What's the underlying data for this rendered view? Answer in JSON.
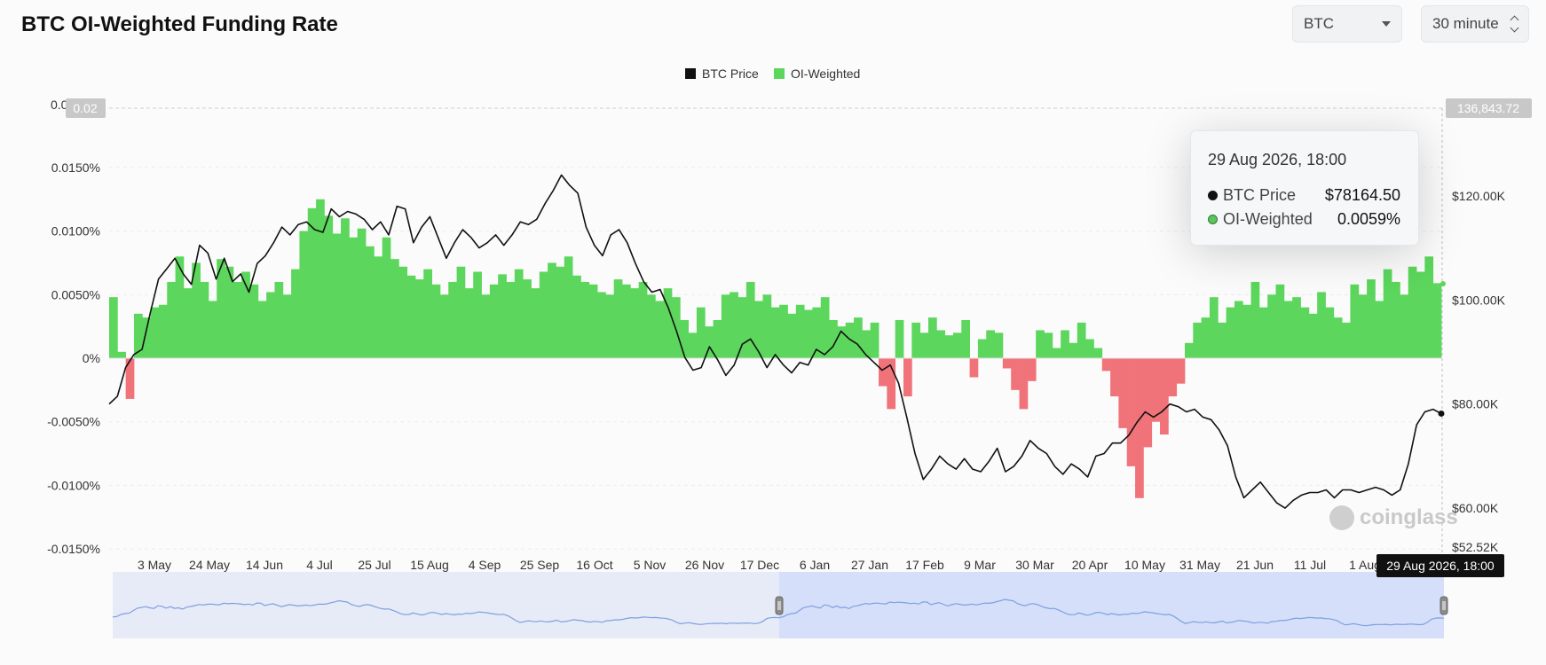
{
  "header": {
    "title": "BTC OI-Weighted Funding Rate",
    "symbol_select": {
      "value": "BTC"
    },
    "interval_select": {
      "value": "30 minute"
    }
  },
  "legend": [
    {
      "name": "BTC Price",
      "color": "#111111"
    },
    {
      "name": "OI-Weighted",
      "color": "#4caf50"
    }
  ],
  "tooltip": {
    "time": "29 Aug 2026, 18:00",
    "rows": [
      {
        "label": "BTC Price",
        "value": "$78164.50"
      },
      {
        "label": "OI-Weighted",
        "value": "0.0059%"
      }
    ]
  },
  "crosshair_label": "29 Aug 2026, 18:00",
  "watermark": "coinglass",
  "colors": {
    "positive": "#5cd65c",
    "negative": "#f0737a",
    "price_line": "#111111",
    "navigator_line": "#7f9fe0",
    "navigator_fill": "#e6ebf7",
    "navigator_selected": "#d5dffa"
  },
  "chart_data": {
    "type": "bar",
    "title": "BTC OI-Weighted Funding Rate",
    "left_axis": {
      "unit": "%",
      "ticks": [
        "0.0150%",
        "0.0100%",
        "0.0050%",
        "0%",
        "-0.0050%",
        "-0.0100%",
        "-0.0150%"
      ],
      "tick_values": [
        0.015,
        0.01,
        0.005,
        0,
        -0.005,
        -0.01,
        -0.015
      ],
      "max_label": "0.02",
      "top_truncated_tick": "0.0",
      "range": [
        -0.015,
        0.0185
      ]
    },
    "right_axis": {
      "ticks": [
        "$120.00K",
        "$100.00K",
        "$80.00K",
        "$60.00K",
        "$52.52K"
      ],
      "tick_values": [
        120000,
        100000,
        80000,
        60000,
        52520
      ],
      "max_label": "136,843.72",
      "range": [
        52520,
        136843.72
      ]
    },
    "x_axis": {
      "ticks": [
        "3 May",
        "24 May",
        "14 Jun",
        "4 Jul",
        "25 Jul",
        "15 Aug",
        "4 Sep",
        "25 Sep",
        "16 Oct",
        "5 Nov",
        "26 Nov",
        "17 Dec",
        "6 Jan",
        "27 Jan",
        "17 Feb",
        "9 Mar",
        "30 Mar",
        "20 Apr",
        "10 May",
        "31 May",
        "21 Jun",
        "11 Jul",
        "1 Aug"
      ]
    },
    "series": [
      {
        "name": "BTC Price",
        "type": "line",
        "points": [
          [
            0,
            80000
          ],
          [
            1,
            81500
          ],
          [
            2,
            87000
          ],
          [
            3,
            89500
          ],
          [
            4,
            90500
          ],
          [
            5,
            97500
          ],
          [
            6,
            104000
          ],
          [
            7,
            106000
          ],
          [
            8,
            108000
          ],
          [
            9,
            105000
          ],
          [
            10,
            103000
          ],
          [
            11,
            110500
          ],
          [
            12,
            109000
          ],
          [
            13,
            104000
          ],
          [
            14,
            108000
          ],
          [
            15,
            103500
          ],
          [
            16,
            105000
          ],
          [
            17,
            101500
          ],
          [
            18,
            107000
          ],
          [
            19,
            108500
          ],
          [
            20,
            111000
          ],
          [
            21,
            114000
          ],
          [
            22,
            112500
          ],
          [
            23,
            114500
          ],
          [
            24,
            115000
          ],
          [
            25,
            113500
          ],
          [
            26,
            113000
          ],
          [
            27,
            117500
          ],
          [
            28,
            116000
          ],
          [
            29,
            117000
          ],
          [
            30,
            116500
          ],
          [
            31,
            115500
          ],
          [
            32,
            113500
          ],
          [
            33,
            115000
          ],
          [
            34,
            112500
          ],
          [
            35,
            118000
          ],
          [
            36,
            117500
          ],
          [
            37,
            111000
          ],
          [
            38,
            114000
          ],
          [
            39,
            116000
          ],
          [
            40,
            112000
          ],
          [
            41,
            108000
          ],
          [
            42,
            111000
          ],
          [
            43,
            113500
          ],
          [
            44,
            112000
          ],
          [
            45,
            110000
          ],
          [
            46,
            111000
          ],
          [
            47,
            112500
          ],
          [
            48,
            110500
          ],
          [
            49,
            112500
          ],
          [
            50,
            115000
          ],
          [
            51,
            114500
          ],
          [
            52,
            115500
          ],
          [
            53,
            118500
          ],
          [
            54,
            121000
          ],
          [
            55,
            124000
          ],
          [
            56,
            122000
          ],
          [
            57,
            120500
          ],
          [
            58,
            114000
          ],
          [
            59,
            110500
          ],
          [
            60,
            108500
          ],
          [
            61,
            112500
          ],
          [
            62,
            113500
          ],
          [
            63,
            111000
          ],
          [
            64,
            107000
          ],
          [
            65,
            103500
          ],
          [
            66,
            101500
          ],
          [
            67,
            102000
          ],
          [
            68,
            98500
          ],
          [
            69,
            94000
          ],
          [
            70,
            89000
          ],
          [
            71,
            86500
          ],
          [
            72,
            87000
          ],
          [
            73,
            91000
          ],
          [
            74,
            88500
          ],
          [
            75,
            85500
          ],
          [
            76,
            87500
          ],
          [
            77,
            91500
          ],
          [
            78,
            92500
          ],
          [
            79,
            90000
          ],
          [
            80,
            87000
          ],
          [
            81,
            89500
          ],
          [
            82,
            87500
          ],
          [
            83,
            86000
          ],
          [
            84,
            88000
          ],
          [
            85,
            87500
          ],
          [
            86,
            90500
          ],
          [
            87,
            89500
          ],
          [
            88,
            91000
          ],
          [
            89,
            94000
          ],
          [
            90,
            92500
          ],
          [
            91,
            91500
          ],
          [
            92,
            89500
          ],
          [
            93,
            88000
          ],
          [
            94,
            86500
          ],
          [
            95,
            87500
          ],
          [
            96,
            84000
          ],
          [
            97,
            77500
          ],
          [
            98,
            70500
          ],
          [
            99,
            65500
          ],
          [
            100,
            67500
          ],
          [
            101,
            70000
          ],
          [
            102,
            68500
          ],
          [
            103,
            67500
          ],
          [
            104,
            69500
          ],
          [
            105,
            67500
          ],
          [
            106,
            67000
          ],
          [
            107,
            69000
          ],
          [
            108,
            71500
          ],
          [
            109,
            67000
          ],
          [
            110,
            68000
          ],
          [
            111,
            70000
          ],
          [
            112,
            73000
          ],
          [
            113,
            71500
          ],
          [
            114,
            70500
          ],
          [
            115,
            68000
          ],
          [
            116,
            66500
          ],
          [
            117,
            68500
          ],
          [
            118,
            67500
          ],
          [
            119,
            66000
          ],
          [
            120,
            70000
          ],
          [
            121,
            70500
          ],
          [
            122,
            72500
          ],
          [
            123,
            72500
          ],
          [
            124,
            74000
          ],
          [
            125,
            76500
          ],
          [
            126,
            78500
          ],
          [
            127,
            77500
          ],
          [
            128,
            78500
          ],
          [
            129,
            80000
          ],
          [
            130,
            79500
          ],
          [
            131,
            78500
          ],
          [
            132,
            79000
          ],
          [
            133,
            77500
          ],
          [
            134,
            77000
          ],
          [
            135,
            75000
          ],
          [
            136,
            72000
          ],
          [
            137,
            66000
          ],
          [
            138,
            62000
          ],
          [
            139,
            63500
          ],
          [
            140,
            65000
          ],
          [
            141,
            63000
          ],
          [
            142,
            61000
          ],
          [
            143,
            60000
          ],
          [
            144,
            61500
          ],
          [
            145,
            62500
          ],
          [
            146,
            63000
          ],
          [
            147,
            63000
          ],
          [
            148,
            63500
          ],
          [
            149,
            62000
          ],
          [
            150,
            63500
          ],
          [
            151,
            63500
          ],
          [
            152,
            63000
          ],
          [
            153,
            63500
          ],
          [
            154,
            64000
          ],
          [
            155,
            63500
          ],
          [
            156,
            62500
          ],
          [
            157,
            63500
          ],
          [
            158,
            68500
          ],
          [
            159,
            76000
          ],
          [
            160,
            78500
          ],
          [
            161,
            79000
          ],
          [
            162,
            78164.5
          ]
        ]
      },
      {
        "name": "OI-Weighted",
        "type": "bar",
        "values": [
          0.0048,
          0.0005,
          -0.0032,
          0.0035,
          0.0032,
          0.004,
          0.0042,
          0.006,
          0.008,
          0.0055,
          0.0075,
          0.006,
          0.0045,
          0.0078,
          0.0072,
          0.006,
          0.0068,
          0.0058,
          0.0045,
          0.0052,
          0.006,
          0.005,
          0.007,
          0.01,
          0.0118,
          0.0125,
          0.0112,
          0.0098,
          0.011,
          0.0095,
          0.0102,
          0.0088,
          0.008,
          0.0095,
          0.0078,
          0.0072,
          0.0065,
          0.0062,
          0.007,
          0.0058,
          0.005,
          0.006,
          0.0072,
          0.0055,
          0.0068,
          0.005,
          0.0058,
          0.0066,
          0.006,
          0.007,
          0.0062,
          0.0055,
          0.0068,
          0.0075,
          0.0072,
          0.008,
          0.0065,
          0.006,
          0.0058,
          0.0052,
          0.005,
          0.0062,
          0.0058,
          0.0055,
          0.006,
          0.005,
          0.0045,
          0.0055,
          0.0048,
          0.003,
          0.002,
          0.004,
          0.0025,
          0.003,
          0.005,
          0.0052,
          0.0048,
          0.006,
          0.0045,
          0.005,
          0.004,
          0.0042,
          0.0035,
          0.0042,
          0.0038,
          0.004,
          0.0048,
          0.003,
          0.0025,
          0.0028,
          0.0032,
          0.0022,
          0.0028,
          -0.0022,
          -0.004,
          0.003,
          -0.003,
          0.0028,
          0.002,
          0.0032,
          0.0022,
          0.0018,
          0.002,
          0.003,
          -0.0015,
          0.0015,
          0.0022,
          0.002,
          -0.0008,
          -0.0025,
          -0.004,
          -0.0018,
          0.0022,
          0.002,
          0.0008,
          0.0022,
          0.0012,
          0.0028,
          0.0015,
          0.0008,
          -0.001,
          -0.003,
          -0.0055,
          -0.0085,
          -0.011,
          -0.007,
          -0.005,
          -0.006,
          -0.003,
          -0.002,
          0.0012,
          0.0028,
          0.0032,
          0.0048,
          0.0028,
          0.004,
          0.0045,
          0.0042,
          0.006,
          0.004,
          0.005,
          0.0058,
          0.0045,
          0.0048,
          0.004,
          0.0035,
          0.0052,
          0.004,
          0.0032,
          0.0028,
          0.0058,
          0.005,
          0.0062,
          0.0045,
          0.007,
          0.006,
          0.005,
          0.0072,
          0.0068,
          0.008,
          0.0059
        ]
      }
    ],
    "grid": "dashed horizontal",
    "legend_position": "top-center"
  }
}
